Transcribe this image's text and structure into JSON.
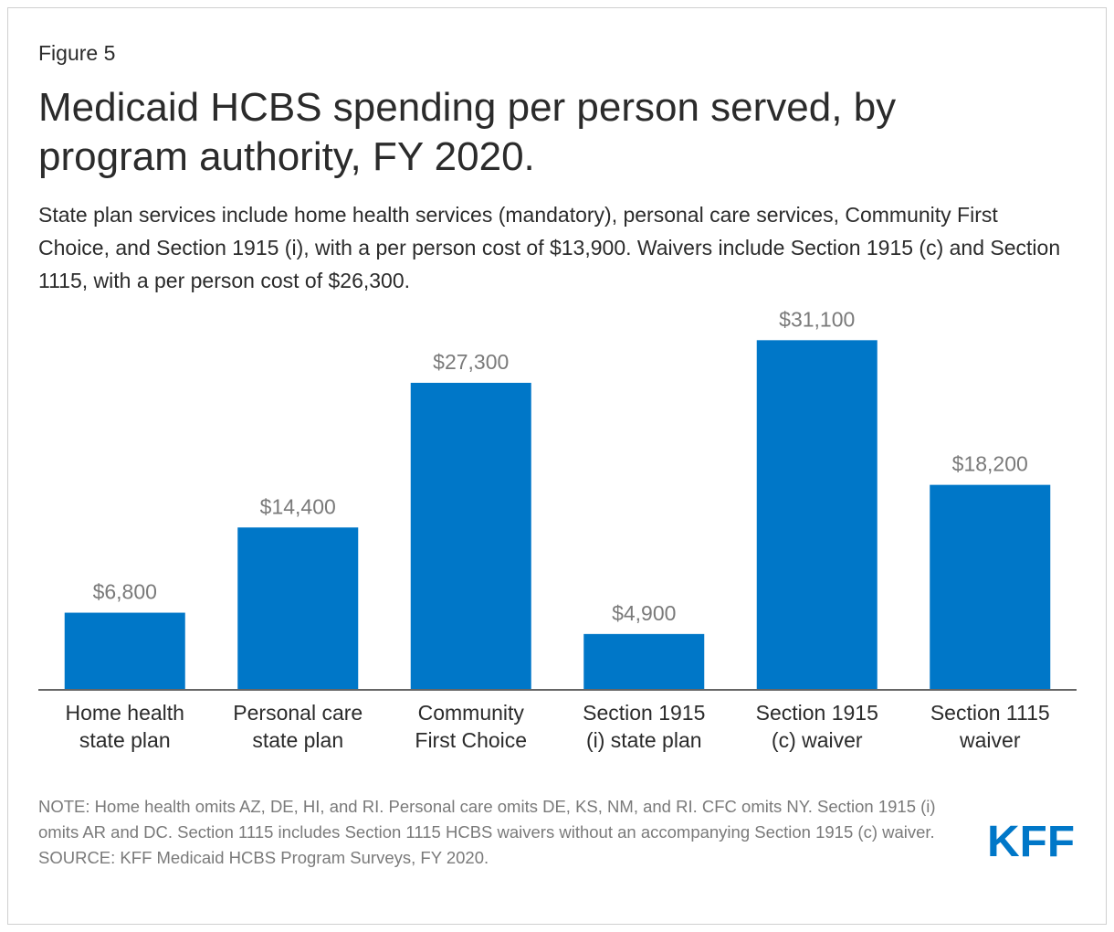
{
  "figure_label": "Figure 5",
  "title": "Medicaid HCBS spending per person served, by program authority, FY 2020.",
  "subtitle": "State plan services include home health services (mandatory), personal care services, Community First Choice, and Section 1915 (i), with a per person cost of $13,900. Waivers include Section 1915 (c) and Section 1115, with a per person cost of $26,300.",
  "note": "NOTE: Home health omits AZ, DE, HI, and RI. Personal care omits DE, KS, NM, and RI. CFC omits NY. Section 1915 (i) omits AR and DC. Section 1115 includes Section 1115 HCBS waivers without an accompanying Section 1915 (c) waiver.",
  "source": "SOURCE: KFF Medicaid HCBS Program Surveys, FY 2020.",
  "logo_text": "KFF",
  "colors": {
    "bar": "#0077c8",
    "logo": "#0077c8",
    "axis": "#333333",
    "label": "#7a7a7a",
    "text": "#2b2b2b"
  },
  "chart_data": {
    "type": "bar",
    "title": "Medicaid HCBS spending per person served, by program authority, FY 2020.",
    "xlabel": "",
    "ylabel": "",
    "ylim": [
      0,
      33000
    ],
    "grid": false,
    "categories": [
      [
        "Home health",
        "state plan"
      ],
      [
        "Personal care",
        "state plan"
      ],
      [
        "Community",
        "First Choice"
      ],
      [
        "Section 1915",
        "(i) state plan"
      ],
      [
        "Section 1915",
        "(c) waiver"
      ],
      [
        "Section 1115",
        "waiver"
      ]
    ],
    "values": [
      6800,
      14400,
      27300,
      4900,
      31100,
      18200
    ],
    "value_labels": [
      "$6,800",
      "$14,400",
      "$27,300",
      "$4,900",
      "$31,100",
      "$18,200"
    ]
  }
}
